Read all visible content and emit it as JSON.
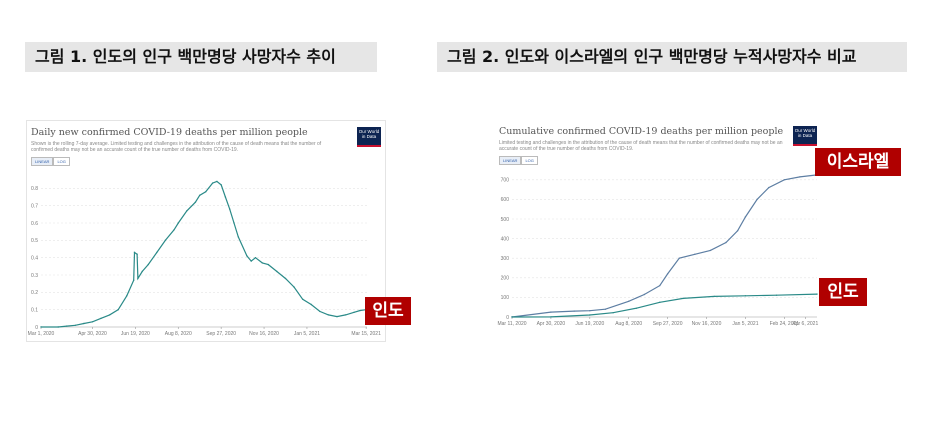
{
  "figures": [
    {
      "label": "그림 1. 인도의 인구 백만명당 사망자수 추이",
      "chart_title": "Daily new confirmed COVID-19 deaths per million people",
      "chart_subtitle": "Shown is the rolling 7-day average. Limited testing and challenges in the attribution of the cause of death means that the number of confirmed deaths may not be an accurate count of the true number of deaths from COVID-19.",
      "logo_text": "Our World in Data",
      "toggle": [
        "LINEAR",
        "LOG"
      ],
      "country_tag": "인도"
    },
    {
      "label": "그림 2. 인도와 이스라엘의 인구 백만명당 누적사망자수 비교",
      "chart_title": "Cumulative confirmed COVID-19 deaths per million people",
      "chart_subtitle": "Limited testing and challenges in the attribution of the cause of death means that the number of confirmed deaths may not be an accurate count of the true number of deaths from COVID-19.",
      "logo_text": "Our World in Data",
      "toggle": [
        "LINEAR",
        "LOG"
      ],
      "tags": {
        "israel": "이스라엘",
        "india": "인도"
      }
    }
  ],
  "chart_data": [
    {
      "type": "line",
      "title": "Daily new confirmed COVID-19 deaths per million people",
      "line_color": "#2a8a88",
      "ylim": [
        0,
        0.9
      ],
      "yticks": [
        0,
        0.1,
        0.2,
        0.3,
        0.4,
        0.5,
        0.6,
        0.7,
        0.8
      ],
      "ytick_labels": [
        "0",
        "0.1",
        "0.2",
        "0.3",
        "0.4",
        "0.5",
        "0.6",
        "0.7",
        "0.8"
      ],
      "xlim": [
        0,
        380
      ],
      "xticks": [
        0,
        60,
        110,
        160,
        210,
        260,
        310,
        379
      ],
      "xtick_labels": [
        "Mar 1, 2020",
        "Apr 30, 2020",
        "Jun 19, 2020",
        "Aug 8, 2020",
        "Sep 27, 2020",
        "Nov 16, 2020",
        "Jan 5, 2021",
        "Mar 15, 2021"
      ],
      "series": [
        {
          "x": [
            0,
            20,
            30,
            40,
            50,
            60,
            70,
            80,
            90,
            100,
            108,
            109,
            112,
            113,
            118,
            125,
            135,
            145,
            155,
            160,
            170,
            180,
            185,
            192,
            200,
            205,
            210,
            215,
            220,
            225,
            230,
            240,
            245,
            250,
            258,
            265,
            275,
            285,
            295,
            305,
            315,
            325,
            335,
            345,
            355,
            365,
            372,
            379
          ],
          "y": [
            0,
            0,
            0.005,
            0.01,
            0.02,
            0.03,
            0.05,
            0.07,
            0.1,
            0.18,
            0.27,
            0.43,
            0.42,
            0.28,
            0.32,
            0.36,
            0.43,
            0.5,
            0.56,
            0.6,
            0.67,
            0.72,
            0.76,
            0.78,
            0.83,
            0.84,
            0.82,
            0.75,
            0.68,
            0.6,
            0.52,
            0.41,
            0.38,
            0.4,
            0.37,
            0.36,
            0.32,
            0.28,
            0.23,
            0.16,
            0.13,
            0.09,
            0.07,
            0.06,
            0.07,
            0.085,
            0.095,
            0.1
          ]
        }
      ]
    },
    {
      "type": "line",
      "title": "Cumulative confirmed COVID-19 deaths per million people",
      "ylim": [
        0,
        750
      ],
      "yticks": [
        0,
        100,
        200,
        300,
        400,
        500,
        600,
        700
      ],
      "ytick_labels": [
        "0",
        "100",
        "200",
        "300",
        "400",
        "500",
        "600",
        "700"
      ],
      "xlim": [
        0,
        392
      ],
      "xticks": [
        0,
        50,
        100,
        150,
        200,
        250,
        300,
        350,
        377
      ],
      "xtick_labels": [
        "Mar 11, 2020",
        "Apr 30, 2020",
        "Jun 19, 2020",
        "Aug 8, 2020",
        "Sep 27, 2020",
        "Nov 16, 2020",
        "Jan 5, 2021",
        "Feb 24, 2021",
        "Apr 6, 2021"
      ],
      "series": [
        {
          "name": "이스라엘",
          "color": "#5d7ea3",
          "x": [
            0,
            50,
            80,
            100,
            120,
            150,
            170,
            190,
            200,
            215,
            235,
            255,
            275,
            290,
            300,
            315,
            330,
            350,
            370,
            392
          ],
          "y": [
            0,
            25,
            30,
            32,
            40,
            80,
            115,
            160,
            220,
            300,
            320,
            340,
            380,
            440,
            510,
            600,
            660,
            700,
            715,
            725
          ]
        },
        {
          "name": "인도",
          "color": "#2a8a88",
          "x": [
            0,
            50,
            100,
            130,
            160,
            190,
            220,
            260,
            300,
            340,
            392
          ],
          "y": [
            0,
            0.5,
            10,
            22,
            45,
            75,
            95,
            105,
            108,
            111,
            117
          ]
        }
      ]
    }
  ]
}
